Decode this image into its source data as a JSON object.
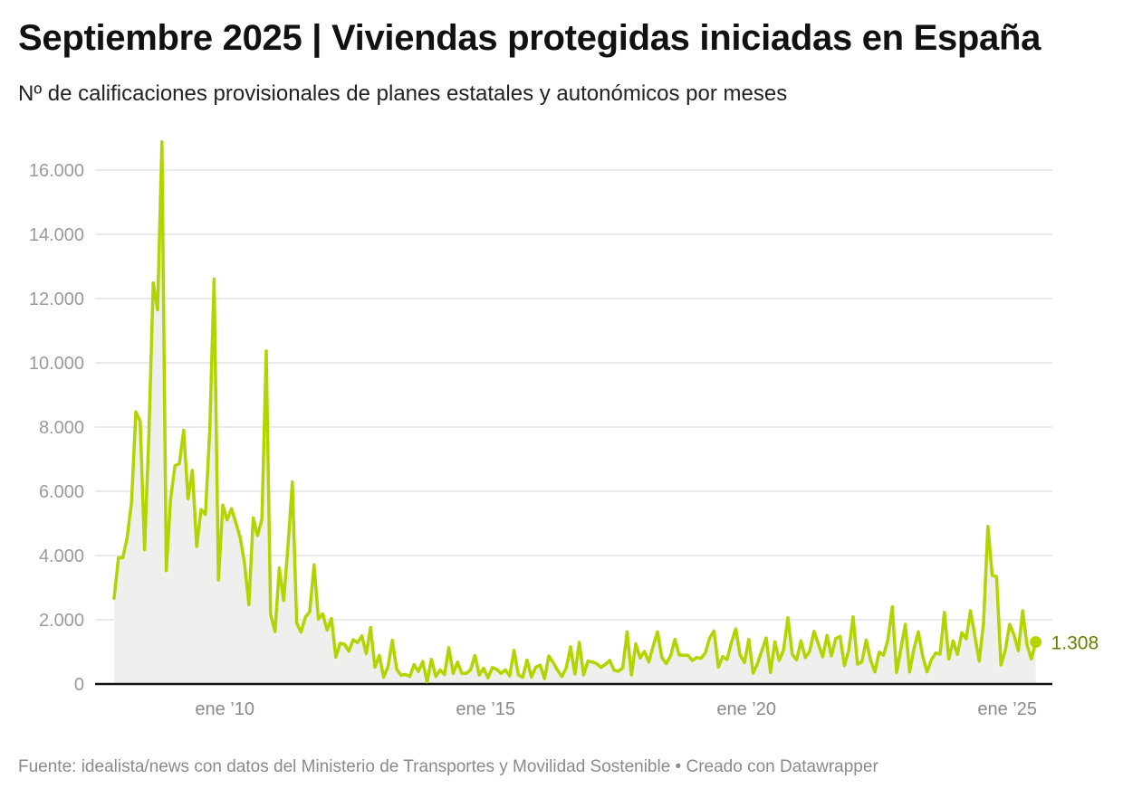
{
  "header": {
    "title": "Septiembre 2025 | Viviendas protegidas iniciadas en España",
    "subtitle": "Nº de calificaciones provisionales de planes estatales y autonómicos por meses"
  },
  "footer": {
    "text": "Fuente: idealista/news con datos del Ministerio de Transportes y Movilidad Sostenible • Creado con Datawrapper"
  },
  "chart_data": {
    "type": "area",
    "title": "Septiembre 2025 | Viviendas protegidas iniciadas en España",
    "subtitle": "Nº de calificaciones provisionales de planes estatales y autonómicos por meses",
    "xlabel": "",
    "ylabel": "",
    "ylim": [
      0,
      16000
    ],
    "grid": true,
    "line_color": "#b3d400",
    "fill_color": "#efefed",
    "end_label_color": "#6b7d00",
    "y_ticks": [
      0,
      2000,
      4000,
      6000,
      8000,
      10000,
      12000,
      14000,
      16000
    ],
    "y_tick_labels": [
      "0",
      "2.000",
      "4.000",
      "6.000",
      "8.000",
      "10.000",
      "12.000",
      "14.000",
      "16.000"
    ],
    "x_ticks": [
      "2010-01",
      "2015-01",
      "2020-01",
      "2025-01"
    ],
    "x_tick_labels": [
      "ene ’10",
      "ene ’15",
      "ene ’20",
      "ene ’25"
    ],
    "end_label": "1.308",
    "x": [
      "2008-01",
      "2008-02",
      "2008-03",
      "2008-04",
      "2008-05",
      "2008-06",
      "2008-07",
      "2008-08",
      "2008-09",
      "2008-10",
      "2008-11",
      "2008-12",
      "2009-01",
      "2009-02",
      "2009-03",
      "2009-04",
      "2009-05",
      "2009-06",
      "2009-07",
      "2009-08",
      "2009-09",
      "2009-10",
      "2009-11",
      "2009-12",
      "2010-01",
      "2010-02",
      "2010-03",
      "2010-04",
      "2010-05",
      "2010-06",
      "2010-07",
      "2010-08",
      "2010-09",
      "2010-10",
      "2010-11",
      "2010-12",
      "2011-01",
      "2011-02",
      "2011-03",
      "2011-04",
      "2011-05",
      "2011-06",
      "2011-07",
      "2011-08",
      "2011-09",
      "2011-10",
      "2011-11",
      "2011-12",
      "2012-01",
      "2012-02",
      "2012-03",
      "2012-04",
      "2012-05",
      "2012-06",
      "2012-07",
      "2012-08",
      "2012-09",
      "2012-10",
      "2012-11",
      "2012-12",
      "2013-01",
      "2013-02",
      "2013-03",
      "2013-04",
      "2013-05",
      "2013-06",
      "2013-07",
      "2013-08",
      "2013-09",
      "2013-10",
      "2013-11",
      "2013-12",
      "2014-01",
      "2014-02",
      "2014-03",
      "2014-04",
      "2014-05",
      "2014-06",
      "2014-07",
      "2014-08",
      "2014-09",
      "2014-10",
      "2014-11",
      "2014-12",
      "2015-01",
      "2015-02",
      "2015-03",
      "2015-04",
      "2015-05",
      "2015-06",
      "2015-07",
      "2015-08",
      "2015-09",
      "2015-10",
      "2015-11",
      "2015-12",
      "2016-01",
      "2016-02",
      "2016-03",
      "2016-04",
      "2016-05",
      "2016-06",
      "2016-07",
      "2016-08",
      "2016-09",
      "2016-10",
      "2016-11",
      "2016-12",
      "2017-01",
      "2017-02",
      "2017-03",
      "2017-04",
      "2017-05",
      "2017-06",
      "2017-07",
      "2017-08",
      "2017-09",
      "2017-10",
      "2017-11",
      "2017-12",
      "2018-01",
      "2018-02",
      "2018-03",
      "2018-04",
      "2018-05",
      "2018-06",
      "2018-07",
      "2018-08",
      "2018-09",
      "2018-10",
      "2018-11",
      "2018-12",
      "2019-01",
      "2019-02",
      "2019-03",
      "2019-04",
      "2019-05",
      "2019-06",
      "2019-07",
      "2019-08",
      "2019-09",
      "2019-10",
      "2019-11",
      "2019-12",
      "2020-01",
      "2020-02",
      "2020-03",
      "2020-04",
      "2020-05",
      "2020-06",
      "2020-07",
      "2020-08",
      "2020-09",
      "2020-10",
      "2020-11",
      "2020-12",
      "2021-01",
      "2021-02",
      "2021-03",
      "2021-04",
      "2021-05",
      "2021-06",
      "2021-07",
      "2021-08",
      "2021-09",
      "2021-10",
      "2021-11",
      "2021-12",
      "2022-01",
      "2022-02",
      "2022-03",
      "2022-04",
      "2022-05",
      "2022-06",
      "2022-07",
      "2022-08",
      "2022-09",
      "2022-10",
      "2022-11",
      "2022-12",
      "2023-01",
      "2023-02",
      "2023-03",
      "2023-04",
      "2023-05",
      "2023-06",
      "2023-07",
      "2023-08",
      "2023-09",
      "2023-10",
      "2023-11",
      "2023-12",
      "2024-01",
      "2024-02",
      "2024-03",
      "2024-04",
      "2024-05",
      "2024-06",
      "2024-07",
      "2024-08",
      "2024-09",
      "2024-10",
      "2024-11",
      "2024-12",
      "2025-01",
      "2025-02",
      "2025-03",
      "2025-04",
      "2025-05",
      "2025-06",
      "2025-07",
      "2025-08",
      "2025-09"
    ],
    "values": [
      2670,
      3930,
      3930,
      4560,
      5650,
      8470,
      8180,
      4180,
      7780,
      12490,
      11650,
      16880,
      3530,
      5770,
      6800,
      6860,
      7900,
      5770,
      6650,
      4280,
      5430,
      5280,
      7900,
      12610,
      3240,
      5570,
      5110,
      5460,
      5020,
      4560,
      3760,
      2470,
      5170,
      4620,
      5140,
      10370,
      2170,
      1630,
      3610,
      2600,
      4290,
      6290,
      1900,
      1615,
      2085,
      2250,
      3710,
      2020,
      2180,
      1680,
      2040,
      835,
      1270,
      1240,
      1020,
      1380,
      1290,
      1500,
      940,
      1760,
      520,
      890,
      210,
      540,
      1360,
      460,
      270,
      300,
      235,
      600,
      390,
      700,
      65,
      770,
      235,
      440,
      300,
      1130,
      330,
      680,
      330,
      330,
      440,
      890,
      280,
      490,
      190,
      510,
      460,
      330,
      440,
      250,
      1050,
      280,
      210,
      750,
      216,
      526,
      590,
      170,
      873,
      667,
      432,
      235,
      498,
      1155,
      310,
      1296,
      282,
      714,
      685,
      638,
      516,
      610,
      732,
      432,
      394,
      498,
      1624,
      282,
      1249,
      808,
      1014,
      685,
      1183,
      1624,
      826,
      638,
      873,
      1390,
      901,
      892,
      892,
      732,
      826,
      798,
      967,
      1437,
      1653,
      526,
      854,
      761,
      1296,
      1718,
      901,
      667,
      1390,
      338,
      638,
      1042,
      1437,
      357,
      1315,
      732,
      1061,
      2066,
      920,
      751,
      1343,
      826,
      1014,
      1643,
      1249,
      845,
      1512,
      873,
      1418,
      1484,
      573,
      1061,
      2094,
      620,
      685,
      1371,
      751,
      376,
      995,
      901,
      1371,
      2404,
      357,
      1108,
      1859,
      376,
      1108,
      1624,
      873,
      376,
      751,
      967,
      930,
      2235,
      779,
      1343,
      920,
      1596,
      1408,
      2282,
      1502,
      714,
      1906,
      4911,
      3380,
      3343,
      592,
      1042,
      1859,
      1531,
      1033,
      2282,
      1221,
      779,
      1308
    ]
  }
}
